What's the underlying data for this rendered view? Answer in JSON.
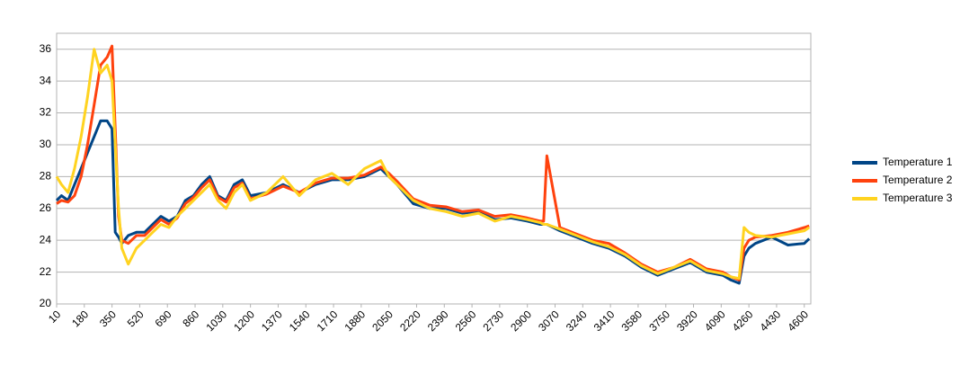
{
  "chart_data": {
    "type": "line",
    "x": [
      10,
      40,
      80,
      120,
      160,
      200,
      240,
      280,
      320,
      350,
      370,
      390,
      410,
      450,
      500,
      550,
      600,
      650,
      700,
      750,
      800,
      850,
      900,
      950,
      1000,
      1050,
      1100,
      1150,
      1200,
      1300,
      1400,
      1500,
      1600,
      1700,
      1800,
      1900,
      2000,
      2050,
      2100,
      2200,
      2300,
      2400,
      2500,
      2600,
      2700,
      2800,
      2900,
      2980,
      3000,
      3020,
      3100,
      3200,
      3300,
      3400,
      3500,
      3600,
      3700,
      3800,
      3900,
      4000,
      4100,
      4150,
      4200,
      4230,
      4260,
      4300,
      4400,
      4500,
      4600,
      4630
    ],
    "series": [
      {
        "name": "Temperature 1",
        "color": "#004586",
        "values": [
          26.5,
          26.8,
          26.5,
          27.5,
          28.5,
          29.5,
          30.5,
          31.5,
          31.5,
          31,
          24.5,
          24.2,
          23.8,
          24.3,
          24.5,
          24.5,
          25,
          25.5,
          25.2,
          25.5,
          26.5,
          26.8,
          27.5,
          28,
          26.8,
          26.5,
          27.5,
          27.8,
          26.8,
          27,
          27.5,
          27,
          27.5,
          27.8,
          27.8,
          28,
          28.5,
          28,
          27.5,
          26.3,
          26,
          26,
          25.7,
          25.8,
          25.3,
          25.4,
          25.2,
          25,
          25,
          25,
          24.6,
          24.2,
          23.8,
          23.5,
          23,
          22.3,
          21.8,
          22.2,
          22.6,
          22,
          21.8,
          21.5,
          21.3,
          23,
          23.5,
          23.8,
          24.2,
          23.7,
          23.8,
          24.1
        ]
      },
      {
        "name": "Temperature 2",
        "color": "#ff420e",
        "values": [
          26.3,
          26.5,
          26.4,
          26.8,
          28,
          30,
          32.5,
          35,
          35.5,
          36.2,
          31,
          25.5,
          24,
          23.8,
          24.3,
          24.3,
          24.8,
          25.3,
          25,
          25.4,
          26.3,
          26.7,
          27.3,
          27.8,
          26.7,
          26.4,
          27.3,
          27.6,
          26.6,
          26.9,
          27.4,
          27,
          27.6,
          27.9,
          27.9,
          28.1,
          28.6,
          28.2,
          27.7,
          26.6,
          26.2,
          26.1,
          25.8,
          25.9,
          25.5,
          25.6,
          25.4,
          25.2,
          25.2,
          29.3,
          24.8,
          24.4,
          24,
          23.8,
          23.2,
          22.5,
          22,
          22.3,
          22.8,
          22.2,
          22,
          21.7,
          21.5,
          23.5,
          24,
          24.2,
          24.3,
          24.5,
          24.8,
          24.9
        ]
      },
      {
        "name": "Temperature 3",
        "color": "#ffd320",
        "values": [
          28,
          27.5,
          27,
          28.5,
          30.5,
          33,
          36,
          34.5,
          35,
          34,
          30,
          26,
          23.5,
          22.5,
          23.5,
          24,
          24.5,
          25,
          24.8,
          25.5,
          26,
          26.5,
          27,
          27.5,
          26.5,
          26,
          27,
          27.5,
          26.5,
          27,
          28,
          26.8,
          27.8,
          28.2,
          27.5,
          28.5,
          29,
          28,
          27.5,
          26.5,
          26,
          25.8,
          25.5,
          25.7,
          25.2,
          25.5,
          25.3,
          25.1,
          25,
          25,
          24.7,
          24.3,
          23.9,
          23.6,
          23.1,
          22.4,
          21.9,
          22.3,
          22.7,
          22.1,
          21.9,
          21.7,
          21.6,
          24.8,
          24.5,
          24.3,
          24.2,
          24.4,
          24.6,
          24.8
        ]
      }
    ],
    "xlim": [
      10,
      4640
    ],
    "xticks": [
      10,
      180,
      350,
      520,
      690,
      860,
      1030,
      1200,
      1370,
      1540,
      1710,
      1880,
      2050,
      2220,
      2390,
      2560,
      2730,
      2900,
      3070,
      3240,
      3410,
      3580,
      3750,
      3920,
      4090,
      4260,
      4430,
      4600
    ],
    "ylim": [
      20,
      37
    ],
    "yticks": [
      20,
      22,
      24,
      26,
      28,
      30,
      32,
      34,
      36
    ],
    "grid": true,
    "legend": "right"
  }
}
